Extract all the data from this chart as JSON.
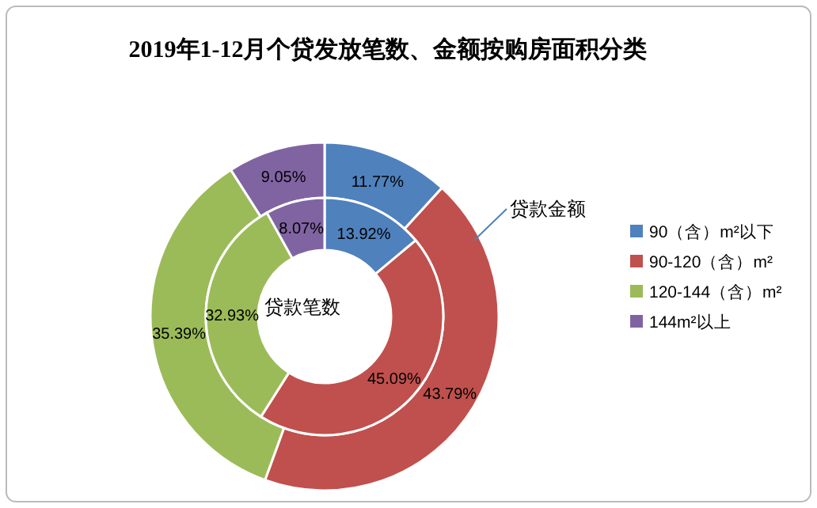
{
  "chart_data": {
    "type": "donut",
    "title": "2019年1-12月个贷发放笔数、金额按购房面积分类",
    "categories": [
      "90（含）m²以下",
      "90-120（含）m²",
      "120-144（含）m²",
      "144m²以上"
    ],
    "colors": [
      "#4f81bd",
      "#c0504d",
      "#9bbb59",
      "#8064a2"
    ],
    "series": [
      {
        "name": "贷款金额",
        "values": [
          11.77,
          43.79,
          35.39,
          9.05
        ],
        "value_labels": [
          "11.77%",
          "43.79%",
          "35.39%",
          "9.05%"
        ]
      },
      {
        "name": "贷款笔数",
        "values": [
          13.92,
          45.09,
          32.93,
          8.07
        ],
        "value_labels": [
          "13.92%",
          "45.09%",
          "32.93%",
          "8.07%"
        ]
      }
    ],
    "legend": "right"
  }
}
